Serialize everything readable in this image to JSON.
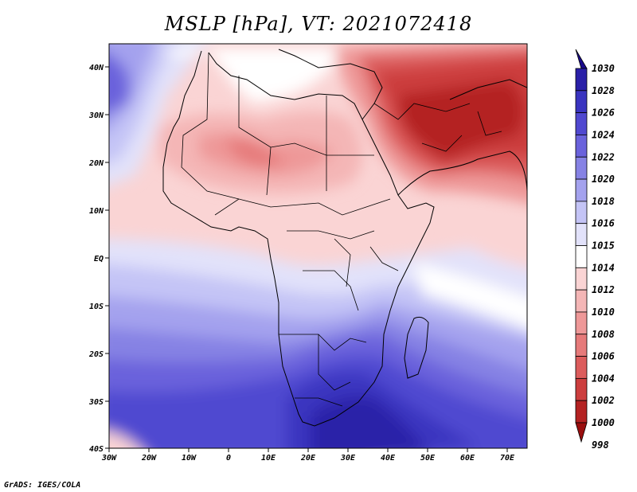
{
  "title": "MSLP [hPa], VT: 2021072418",
  "credit": "GrADS: IGES/COLA",
  "axes": {
    "x_ticks": [
      "30W",
      "20W",
      "10W",
      "0",
      "10E",
      "20E",
      "30E",
      "40E",
      "50E",
      "60E",
      "70E"
    ],
    "y_ticks": [
      "40N",
      "30N",
      "20N",
      "10N",
      "EQ",
      "10S",
      "20S",
      "30S",
      "40S"
    ]
  },
  "colorbar": {
    "levels": [
      "1030",
      "1028",
      "1026",
      "1024",
      "1022",
      "1020",
      "1018",
      "1016",
      "1015",
      "1014",
      "1012",
      "1010",
      "1008",
      "1006",
      "1004",
      "1002",
      "1000",
      "998"
    ],
    "colors": [
      "#1a0a8c",
      "#2a20a8",
      "#3a34c0",
      "#5048d0",
      "#6a62dc",
      "#8682e4",
      "#a4a2ee",
      "#c4c4f6",
      "#e2e2fa",
      "#ffffff",
      "#fad4d4",
      "#f4b6b6",
      "#ee9898",
      "#e67a7a",
      "#dc5c5c",
      "#cc3e3e",
      "#b42222",
      "#9a0e0e"
    ]
  },
  "colors": {
    "high": "#2a20a8",
    "low": "#b42222",
    "border": "#000000"
  }
}
